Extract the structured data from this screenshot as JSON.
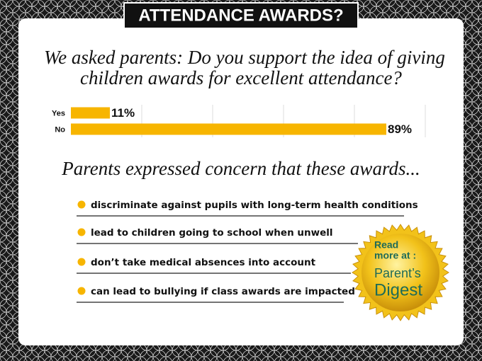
{
  "chart_data": {
    "type": "bar",
    "orientation": "horizontal",
    "title": "ATTENDANCE AWARDS?",
    "subtitle": [
      "We asked parents: Do you support the idea of giving",
      "children awards for excellent attendance?"
    ],
    "categories": [
      "Yes",
      "No"
    ],
    "values": [
      11,
      89
    ],
    "value_labels": [
      "11%",
      "89%"
    ],
    "color": "#f7b500",
    "xlim": [
      0,
      100
    ],
    "grid": true
  },
  "concerns": {
    "heading": "Parents expressed concern that these awards...",
    "items": [
      "discriminate against pupils with long-term health conditions",
      "lead to children going to school when unwell",
      "don’t take medical absences into account",
      "can lead to bullying if class awards are impacted"
    ],
    "bullet_color": "#f7b500"
  },
  "badge": {
    "lines": [
      "Read",
      "more at :",
      "Parent’s",
      "Digest"
    ],
    "color": "#f2c21a"
  }
}
